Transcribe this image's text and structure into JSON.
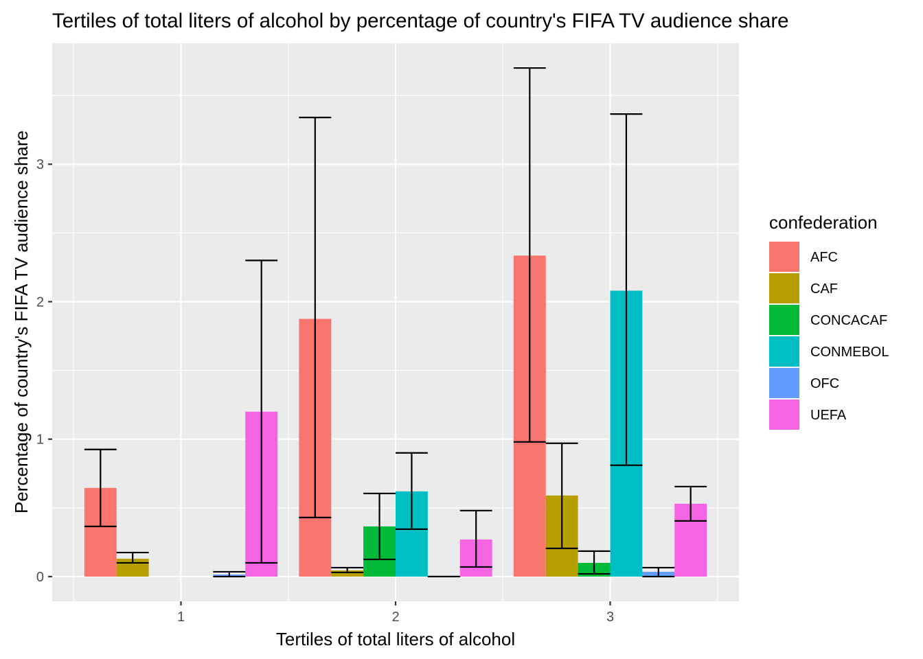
{
  "chart_data": {
    "type": "bar",
    "title": "Tertiles of total liters of alcohol by percentage of country's FIFA TV audience share",
    "xlabel": "Tertiles of total liters of alcohol",
    "ylabel": "Percentage of country's FIFA TV audience share",
    "categories": [
      "1",
      "2",
      "3"
    ],
    "y_ticks": [
      0,
      1,
      2,
      3
    ],
    "y_tick_labels": [
      "0",
      "1",
      "2",
      "3"
    ],
    "ylim": [
      -0.18,
      3.88
    ],
    "grid": true,
    "error_bars": true,
    "legend": {
      "title": "confederation",
      "position": "right"
    },
    "series": [
      {
        "name": "AFC",
        "color": "#F8766D",
        "values": [
          0.645,
          1.875,
          2.335
        ],
        "err_low": [
          0.365,
          0.43,
          0.98
        ],
        "err_high": [
          0.925,
          3.34,
          3.7
        ]
      },
      {
        "name": "CAF",
        "color": "#B79F00",
        "values": [
          0.13,
          0.045,
          0.59
        ],
        "err_low": [
          0.1,
          0.03,
          0.205
        ],
        "err_high": [
          0.175,
          0.065,
          0.97
        ]
      },
      {
        "name": "CONCACAF",
        "color": "#00BA38",
        "values": [
          null,
          0.365,
          0.1
        ],
        "err_low": [
          null,
          0.125,
          0.02
        ],
        "err_high": [
          null,
          0.605,
          0.185
        ]
      },
      {
        "name": "CONMEBOL",
        "color": "#00BFC4",
        "values": [
          null,
          0.62,
          2.08
        ],
        "err_low": [
          null,
          0.345,
          0.81
        ],
        "err_high": [
          null,
          0.9,
          3.365
        ]
      },
      {
        "name": "OFC",
        "color": "#619CFF",
        "values": [
          0.015,
          0.0,
          0.035
        ],
        "err_low": [
          0.0,
          0.0,
          0.0
        ],
        "err_high": [
          0.035,
          0.0,
          0.065
        ]
      },
      {
        "name": "UEFA",
        "color": "#F564E3",
        "values": [
          1.2,
          0.27,
          0.53
        ],
        "err_low": [
          0.1,
          0.07,
          0.405
        ],
        "err_high": [
          2.3,
          0.48,
          0.655
        ]
      }
    ]
  }
}
